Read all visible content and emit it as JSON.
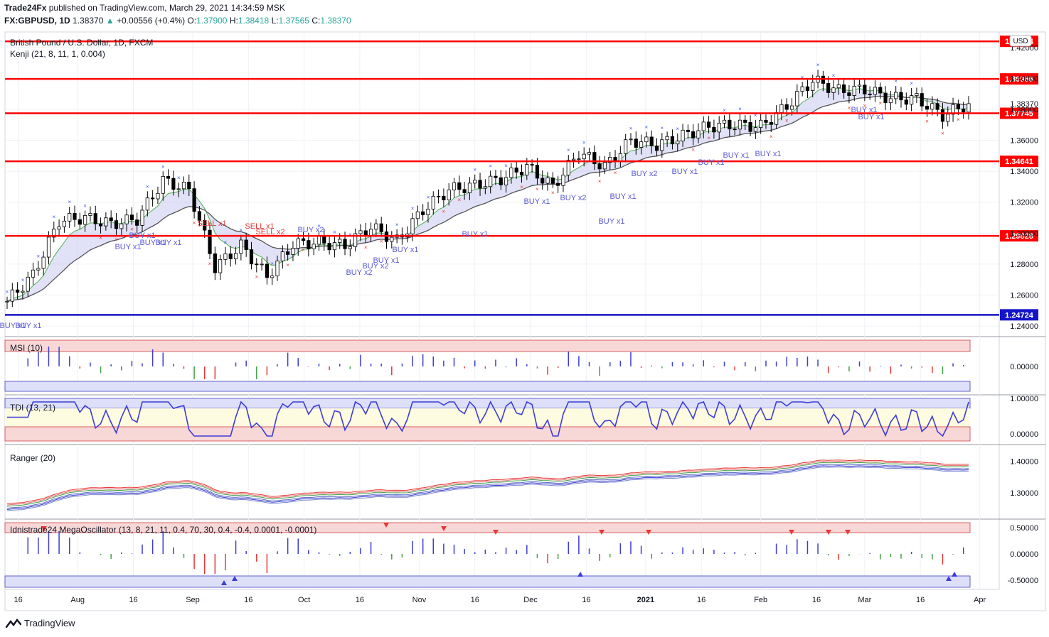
{
  "header": {
    "publisher": "Trade24Fx",
    "published_text": "published on TradingView.com, March 29, 2021 14:34:59 MSK",
    "symbol": "FX:GBPUSD, 1D",
    "last": "1.38370",
    "change": "+0.00556 (+0.4%)",
    "o_label": "O:",
    "o": "1.37900",
    "h_label": "H:",
    "h": "1.38418",
    "l_label": "L:",
    "l": "1.37565",
    "c_label": "C:",
    "c": "1.38370"
  },
  "main_pane": {
    "title": "British Pound / U.S. Dollar, 1D, FXCM",
    "indicator": "Kenji (21, 8, 11, 1, 0.004)",
    "currency": "USD",
    "price_ticks": [
      "1.42000",
      "1.40000",
      "1.38000",
      "1.36000",
      "1.34000",
      "1.32000",
      "1.30000",
      "1.28000",
      "1.26000",
      "1.24000"
    ],
    "current_price_label": "1.38370",
    "levels": [
      {
        "label": "1.42394",
        "color": "#ff0000"
      },
      {
        "label": "1.39966",
        "color": "#ff0000"
      },
      {
        "label": "1.37745",
        "color": "#ff0000"
      },
      {
        "label": "1.34641",
        "color": "#ff0000"
      },
      {
        "label": "1.29828",
        "color": "#ff0000"
      },
      {
        "label": "1.24724",
        "color": "#1414c8"
      }
    ],
    "signals": [
      {
        "text": "BUY x1",
        "kind": "buy"
      },
      {
        "text": "BUY x1",
        "kind": "buy"
      },
      {
        "text": "BUY x1",
        "kind": "buy"
      },
      {
        "text": "BUY x1",
        "kind": "buy"
      },
      {
        "text": "BUY x1",
        "kind": "buy"
      },
      {
        "text": "BUY x1",
        "kind": "buy"
      },
      {
        "text": "SELL x1",
        "kind": "sell"
      },
      {
        "text": "SELL x1",
        "kind": "sell"
      },
      {
        "text": "SELL x2",
        "kind": "sell"
      },
      {
        "text": "BUY x2",
        "kind": "buy"
      },
      {
        "text": "BUY x2",
        "kind": "buy"
      },
      {
        "text": "BUY x2",
        "kind": "buy"
      },
      {
        "text": "BUY x1",
        "kind": "buy"
      },
      {
        "text": "BUY x1",
        "kind": "buy"
      },
      {
        "text": "BUY x1",
        "kind": "buy"
      },
      {
        "text": "BUY x1",
        "kind": "buy"
      },
      {
        "text": "BUY x2",
        "kind": "buy"
      },
      {
        "text": "BUY x1",
        "kind": "buy"
      },
      {
        "text": "BUY x1",
        "kind": "buy"
      },
      {
        "text": "BUY x2",
        "kind": "buy"
      },
      {
        "text": "BUY x1",
        "kind": "buy"
      },
      {
        "text": "BUY x1",
        "kind": "buy"
      },
      {
        "text": "BUY x1",
        "kind": "buy"
      },
      {
        "text": "BUY x1",
        "kind": "buy"
      },
      {
        "text": "BUY x1",
        "kind": "buy"
      },
      {
        "text": "BUY x1",
        "kind": "buy"
      }
    ]
  },
  "msi_pane": {
    "title": "MSI (10)",
    "ticks": [
      "0.00000"
    ]
  },
  "tdi_pane": {
    "title": "TDI (13, 21)",
    "ticks": [
      "1.00000",
      "0.00000"
    ]
  },
  "ranger_pane": {
    "title": "Ranger (20)",
    "ticks": [
      "1.40000",
      "1.30000"
    ]
  },
  "mega_pane": {
    "title": "Idnistrade24 MegaOscillator (13, 8, 21, 11, 0.4, 70, 30, 0.4, -0.4, 0.0001, -0.0001)",
    "ticks": [
      "0.50000",
      "0.00000",
      "-0.50000"
    ]
  },
  "time_axis": [
    "16",
    "Aug",
    "16",
    "Sep",
    "16",
    "Oct",
    "16",
    "Nov",
    "16",
    "Dec",
    "16",
    "2021",
    "16",
    "Feb",
    "16",
    "Mar",
    "16",
    "Apr"
  ],
  "footer": {
    "brand": "TradingView"
  },
  "colors": {
    "up_candle": "#ffffff",
    "down_candle": "#000000",
    "level_red": "#ff0000",
    "level_blue": "#1414c8",
    "buy_text": "#5b5bd6",
    "sell_text": "#e53935",
    "band_fill": "#c8c8f0",
    "band_red": "#f5c8c8"
  },
  "chart_data": [
    {
      "type": "candlestick",
      "title": "British Pound / U.S. Dollar, 1D, FXCM",
      "x_range": [
        "2020-07-13",
        "2021-03-29"
      ],
      "ylim": [
        1.235,
        1.43
      ],
      "close_path": [
        {
          "x": "2020-07-13",
          "y": 1.256
        },
        {
          "x": "2020-07-20",
          "y": 1.273
        },
        {
          "x": "2020-07-27",
          "y": 1.308
        },
        {
          "x": "2020-08-03",
          "y": 1.31
        },
        {
          "x": "2020-08-10",
          "y": 1.306
        },
        {
          "x": "2020-08-17",
          "y": 1.309
        },
        {
          "x": "2020-08-24",
          "y": 1.334
        },
        {
          "x": "2020-08-31",
          "y": 1.328
        },
        {
          "x": "2020-09-07",
          "y": 1.278
        },
        {
          "x": "2020-09-14",
          "y": 1.292
        },
        {
          "x": "2020-09-21",
          "y": 1.272
        },
        {
          "x": "2020-09-28",
          "y": 1.293
        },
        {
          "x": "2020-10-05",
          "y": 1.294
        },
        {
          "x": "2020-10-12",
          "y": 1.292
        },
        {
          "x": "2020-10-19",
          "y": 1.304
        },
        {
          "x": "2020-10-26",
          "y": 1.295
        },
        {
          "x": "2020-11-02",
          "y": 1.315
        },
        {
          "x": "2020-11-09",
          "y": 1.328
        },
        {
          "x": "2020-11-16",
          "y": 1.331
        },
        {
          "x": "2020-11-23",
          "y": 1.335
        },
        {
          "x": "2020-11-30",
          "y": 1.343
        },
        {
          "x": "2020-12-07",
          "y": 1.33
        },
        {
          "x": "2020-12-14",
          "y": 1.352
        },
        {
          "x": "2020-12-21",
          "y": 1.343
        },
        {
          "x": "2020-12-28",
          "y": 1.36
        },
        {
          "x": "2021-01-04",
          "y": 1.357
        },
        {
          "x": "2021-01-11",
          "y": 1.363
        },
        {
          "x": "2021-01-18",
          "y": 1.369
        },
        {
          "x": "2021-01-25",
          "y": 1.37
        },
        {
          "x": "2021-02-01",
          "y": 1.369
        },
        {
          "x": "2021-02-08",
          "y": 1.382
        },
        {
          "x": "2021-02-15",
          "y": 1.399
        },
        {
          "x": "2021-02-22",
          "y": 1.392
        },
        {
          "x": "2021-03-01",
          "y": 1.393
        },
        {
          "x": "2021-03-08",
          "y": 1.387
        },
        {
          "x": "2021-03-15",
          "y": 1.387
        },
        {
          "x": "2021-03-22",
          "y": 1.376
        },
        {
          "x": "2021-03-29",
          "y": 1.3837
        }
      ],
      "horizontal_levels": [
        1.42394,
        1.39966,
        1.37745,
        1.34641,
        1.29828,
        1.24724
      ]
    },
    {
      "type": "bar",
      "title": "MSI (10)",
      "ylim": [
        -0.9,
        0.9
      ],
      "note": "blue above zero, red/green below"
    },
    {
      "type": "line",
      "title": "TDI (13, 21)",
      "ylim": [
        -0.25,
        1.1
      ]
    },
    {
      "type": "line",
      "title": "Ranger (20)",
      "ylim": [
        1.22,
        1.45
      ]
    },
    {
      "type": "bar",
      "title": "Idnistrade24 MegaOscillator (13, 8, 21, 11, 0.4, 70, 30, 0.4, -0.4, 0.0001, -0.0001)",
      "ylim": [
        -0.65,
        0.65
      ]
    }
  ]
}
